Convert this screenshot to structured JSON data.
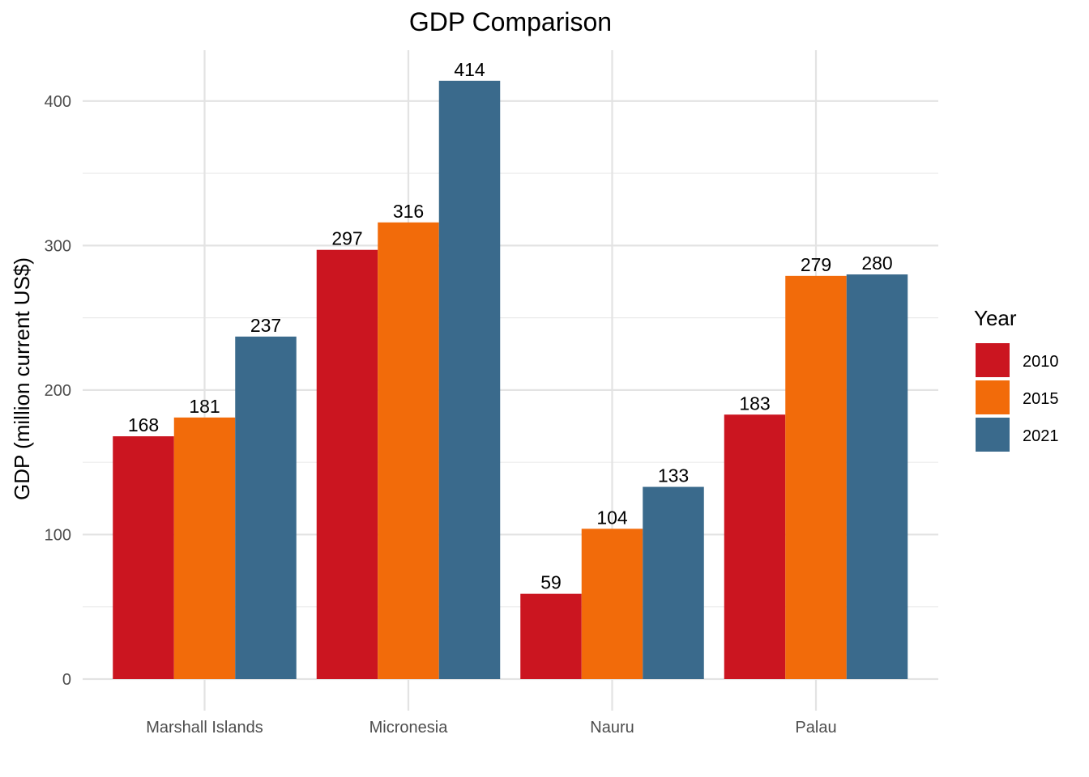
{
  "chart_data": {
    "type": "bar",
    "title": "GDP Comparison",
    "xlabel": "",
    "ylabel": "GDP (million current US$)",
    "categories": [
      "Marshall Islands",
      "Micronesia",
      "Nauru",
      "Palau"
    ],
    "series": [
      {
        "name": "2010",
        "color": "#CB1520",
        "values": [
          168,
          297,
          59,
          183
        ]
      },
      {
        "name": "2015",
        "color": "#F26B0A",
        "values": [
          181,
          316,
          104,
          279
        ]
      },
      {
        "name": "2021",
        "color": "#3A6A8C",
        "values": [
          237,
          414,
          133,
          280
        ]
      }
    ],
    "yticks": [
      "0",
      "100",
      "200",
      "300",
      "400"
    ],
    "ylim": [
      0,
      435
    ],
    "grid": true,
    "legend": {
      "title": "Year",
      "position": "right"
    }
  }
}
